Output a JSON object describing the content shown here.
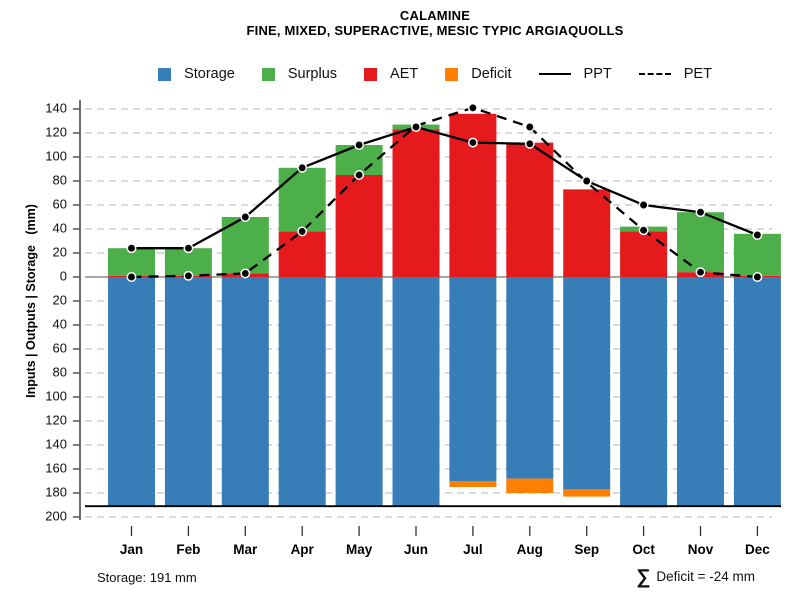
{
  "title": "CALAMINE",
  "subtitle": "FINE, MIXED, SUPERACTIVE, MESIC TYPIC ARGIAQUOLLS",
  "y_axis_title": "Inputs | Outputs | Storage   (mm)",
  "footer": {
    "storage_note": "Storage: 191 mm",
    "sigma": "∑",
    "deficit_note": " Deficit = -24 mm"
  },
  "chart_data": {
    "type": "stacked-bar-line-combo",
    "title": "CALAMINE",
    "subtitle": "FINE, MIXED, SUPERACTIVE, MESIC TYPIC ARGIAQUOLLS",
    "ylabel": "Inputs | Outputs | Storage   (mm)",
    "months": [
      "Jan",
      "Feb",
      "Mar",
      "Apr",
      "May",
      "Jun",
      "Jul",
      "Aug",
      "Sep",
      "Oct",
      "Nov",
      "Dec"
    ],
    "series_note": "bars above zero = AET + Surplus stacked; bars below zero = Storage with Deficit stacked beneath; lines = PPT (solid) and PET (dashed)",
    "aet": [
      1,
      1,
      3,
      38,
      85,
      123,
      136,
      112,
      73,
      38,
      4,
      1
    ],
    "surplus": [
      23,
      23,
      47,
      53,
      25,
      4,
      0,
      0,
      0,
      4,
      50,
      35
    ],
    "storage": [
      191,
      191,
      191,
      191,
      191,
      191,
      170,
      168,
      177,
      191,
      191,
      191
    ],
    "deficit": [
      0,
      0,
      0,
      0,
      0,
      0,
      5,
      12,
      6,
      1,
      0,
      0
    ],
    "ppt": [
      24,
      24,
      50,
      91,
      110,
      125,
      112,
      111,
      80,
      60,
      54,
      35
    ],
    "pet": [
      0,
      1,
      3,
      38,
      85,
      126,
      141,
      125,
      79,
      39,
      4,
      0
    ],
    "storage_capacity": 191,
    "deficit_total": -24,
    "y_axis": {
      "upper_ticks": [
        140,
        120,
        100,
        80,
        60,
        40,
        20
      ],
      "zero_label": "0",
      "lower_ticks": [
        20,
        40,
        60,
        80,
        100,
        120,
        140,
        160,
        180,
        200
      ],
      "grid": "dashed",
      "ylim_top": 150,
      "ylim_bottom": -205
    },
    "colors": {
      "storage": "#377eb8",
      "surplus": "#4daf4a",
      "aet": "#e41a1c",
      "deficit": "#ff7f00",
      "ppt_line": "#000000",
      "pet_line": "#000000",
      "grid": "#c3c3c3",
      "zero_line": "#8a8a8a",
      "capacity_line": "#000000",
      "axis": "#4a4a4a"
    },
    "legend": [
      {
        "label": "Storage",
        "swatch": "square",
        "color": "#377eb8"
      },
      {
        "label": "Surplus",
        "swatch": "square",
        "color": "#4daf4a"
      },
      {
        "label": "AET",
        "swatch": "square",
        "color": "#e41a1c"
      },
      {
        "label": "Deficit",
        "swatch": "square",
        "color": "#ff7f00"
      },
      {
        "label": "PPT",
        "swatch": "solid-line",
        "color": "#000000"
      },
      {
        "label": "PET",
        "swatch": "dashed-line",
        "color": "#000000"
      }
    ],
    "legend_position": "top-center"
  }
}
